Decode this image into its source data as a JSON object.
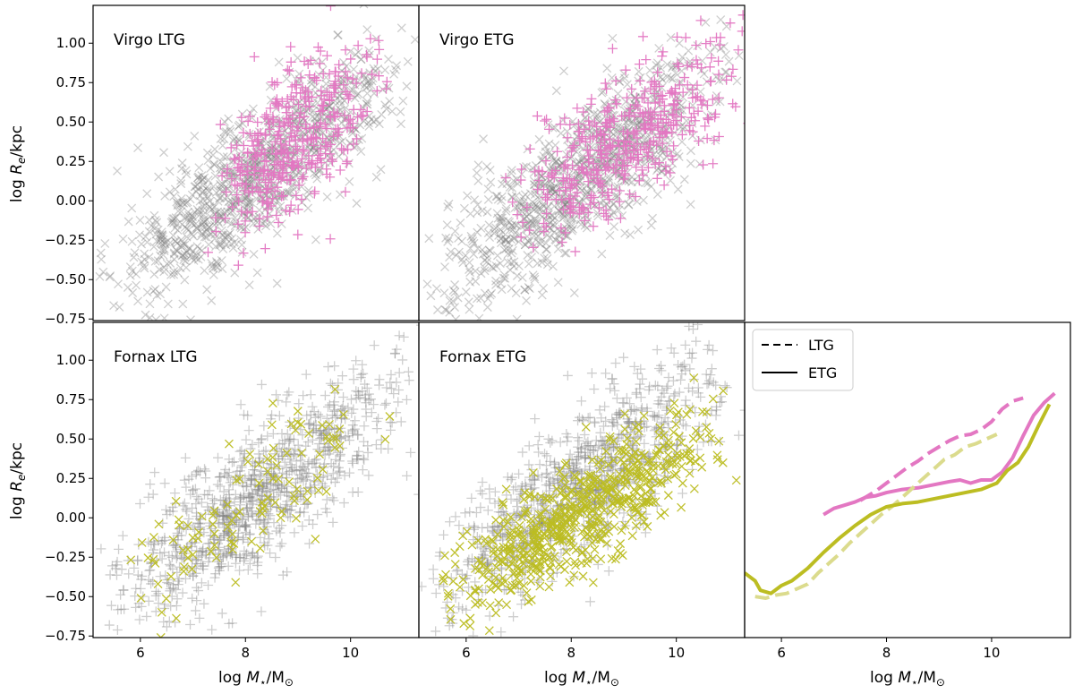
{
  "figure": {
    "xlabel": "log M⋆/M⊙",
    "ylabel": "log Re/kpc",
    "xticks": [
      6,
      8,
      10
    ],
    "yticks": [
      "1.00",
      "0.75",
      "0.50",
      "0.25",
      "0.00",
      "−0.25",
      "−0.50",
      "−0.75"
    ],
    "colors": {
      "virgo": "#e377c2",
      "fornax": "#bcbd22",
      "background": "#7f7f7f"
    }
  },
  "chart_data": [
    {
      "type": "scatter",
      "panel": "virgo-ltg",
      "title": "Virgo LTG",
      "xlim": [
        5.1,
        11.3
      ],
      "ylim": [
        -0.76,
        1.24
      ],
      "xlabel": "",
      "ylabel": "log Re/kpc",
      "highlight": {
        "name": "Virgo LTG",
        "marker": "+",
        "color": "#e377c2",
        "trend": {
          "x": [
            7.5,
            10.5
          ],
          "y": [
            0.05,
            0.75
          ]
        },
        "spread": 0.22,
        "count": 380
      },
      "background": {
        "marker": "x",
        "color": "#7f7f7f",
        "trend": {
          "x": [
            5.4,
            11.0
          ],
          "y": [
            -0.55,
            0.85
          ]
        },
        "spread": 0.22,
        "count": 950
      }
    },
    {
      "type": "scatter",
      "panel": "virgo-etg",
      "title": "Virgo ETG",
      "xlim": [
        5.1,
        11.3
      ],
      "ylim": [
        -0.76,
        1.24
      ],
      "xlabel": "",
      "ylabel": "",
      "highlight": {
        "name": "Virgo ETG",
        "marker": "+",
        "color": "#e377c2",
        "trend": {
          "x": [
            7.0,
            11.2
          ],
          "y": [
            -0.05,
            0.85
          ]
        },
        "spread": 0.2,
        "count": 420
      },
      "background": {
        "marker": "x",
        "color": "#7f7f7f",
        "trend": {
          "x": [
            5.4,
            11.0
          ],
          "y": [
            -0.55,
            0.85
          ]
        },
        "spread": 0.22,
        "count": 950
      }
    },
    {
      "type": "scatter",
      "panel": "fornax-ltg",
      "title": "Fornax LTG",
      "xlim": [
        5.1,
        11.3
      ],
      "ylim": [
        -0.76,
        1.24
      ],
      "xlabel": "log M⋆/M⊙",
      "ylabel": "log Re/kpc",
      "highlight": {
        "name": "Fornax LTG",
        "marker": "x",
        "color": "#bcbd22",
        "trend": {
          "x": [
            5.6,
            10.8
          ],
          "y": [
            -0.55,
            0.75
          ]
        },
        "spread": 0.2,
        "count": 110
      },
      "background": {
        "marker": "+",
        "color": "#7f7f7f",
        "trend": {
          "x": [
            5.4,
            11.1
          ],
          "y": [
            -0.55,
            0.85
          ]
        },
        "spread": 0.22,
        "count": 950
      }
    },
    {
      "type": "scatter",
      "panel": "fornax-etg",
      "title": "Fornax ETG",
      "xlim": [
        5.1,
        11.3
      ],
      "ylim": [
        -0.76,
        1.24
      ],
      "xlabel": "log M⋆/M⊙",
      "ylabel": "",
      "highlight": {
        "name": "Fornax ETG",
        "marker": "x",
        "color": "#bcbd22",
        "trend": {
          "x": [
            5.6,
            10.8
          ],
          "y": [
            -0.5,
            0.55
          ]
        },
        "spread": 0.17,
        "count": 600
      },
      "background": {
        "marker": "+",
        "color": "#7f7f7f",
        "trend": {
          "x": [
            5.4,
            11.1
          ],
          "y": [
            -0.45,
            0.9
          ]
        },
        "spread": 0.22,
        "count": 950
      }
    },
    {
      "type": "line",
      "panel": "medians",
      "xlim": [
        5.3,
        11.5
      ],
      "ylim": [
        -0.76,
        1.24
      ],
      "xlabel": "log M⋆/M⊙",
      "ylabel": "",
      "legend": [
        {
          "label": "LTG",
          "style": "dashed"
        },
        {
          "label": "ETG",
          "style": "solid"
        }
      ],
      "series": [
        {
          "name": "Virgo LTG",
          "color": "#e377c2",
          "style": "dashed",
          "x": [
            7.5,
            7.8,
            8.0,
            8.2,
            8.4,
            8.6,
            8.8,
            9.0,
            9.2,
            9.4,
            9.6,
            9.8,
            10.0,
            10.2,
            10.4,
            10.6
          ],
          "y": [
            0.11,
            0.17,
            0.22,
            0.27,
            0.32,
            0.36,
            0.41,
            0.45,
            0.49,
            0.52,
            0.53,
            0.56,
            0.61,
            0.69,
            0.74,
            0.76
          ]
        },
        {
          "name": "Virgo ETG",
          "color": "#e377c2",
          "style": "solid",
          "x": [
            6.8,
            7.0,
            7.2,
            7.4,
            7.6,
            7.8,
            8.0,
            8.3,
            8.6,
            8.9,
            9.2,
            9.4,
            9.6,
            9.8,
            10.0,
            10.2,
            10.4,
            10.6,
            10.8,
            11.0,
            11.2
          ],
          "y": [
            0.02,
            0.06,
            0.08,
            0.1,
            0.13,
            0.14,
            0.16,
            0.18,
            0.19,
            0.21,
            0.23,
            0.24,
            0.22,
            0.24,
            0.24,
            0.29,
            0.38,
            0.52,
            0.65,
            0.73,
            0.79
          ]
        },
        {
          "name": "Fornax LTG",
          "color": "#dbdb8d",
          "style": "dashed",
          "x": [
            5.5,
            5.7,
            5.9,
            6.1,
            6.3,
            6.5,
            6.7,
            6.9,
            7.1,
            7.3,
            7.5,
            7.7,
            7.9,
            8.1,
            8.3,
            8.5,
            8.7,
            8.9,
            9.1,
            9.3,
            9.5,
            9.7,
            9.9,
            10.1
          ],
          "y": [
            -0.5,
            -0.51,
            -0.49,
            -0.48,
            -0.45,
            -0.42,
            -0.35,
            -0.29,
            -0.23,
            -0.16,
            -0.1,
            -0.04,
            0.02,
            0.07,
            0.13,
            0.19,
            0.25,
            0.31,
            0.37,
            0.4,
            0.45,
            0.47,
            0.5,
            0.53
          ]
        },
        {
          "name": "Fornax ETG",
          "color": "#bcbd22",
          "style": "solid",
          "x": [
            5.3,
            5.5,
            5.6,
            5.8,
            6.0,
            6.2,
            6.5,
            6.8,
            7.1,
            7.4,
            7.7,
            8.0,
            8.3,
            8.6,
            8.9,
            9.2,
            9.5,
            9.8,
            10.1,
            10.3,
            10.5,
            10.7,
            10.9,
            11.1
          ],
          "y": [
            -0.35,
            -0.4,
            -0.46,
            -0.48,
            -0.43,
            -0.4,
            -0.32,
            -0.22,
            -0.13,
            -0.05,
            0.02,
            0.07,
            0.09,
            0.1,
            0.12,
            0.14,
            0.16,
            0.18,
            0.22,
            0.3,
            0.35,
            0.45,
            0.59,
            0.72
          ]
        }
      ]
    }
  ]
}
